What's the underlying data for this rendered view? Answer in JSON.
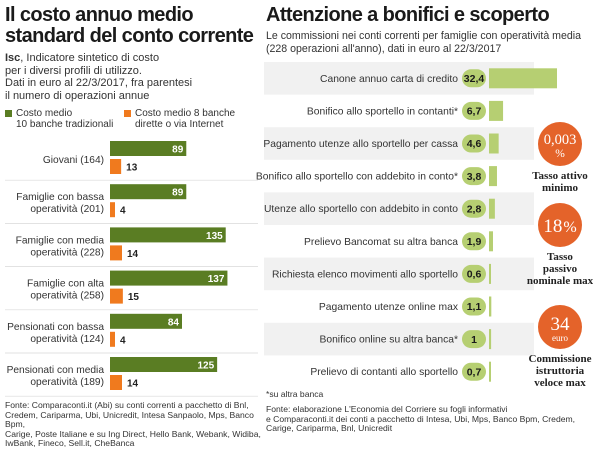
{
  "colors": {
    "green": "#5a7d23",
    "orange": "#f07a1e",
    "light_green": "#b6cf72",
    "stripe": "#f1f1f1",
    "circle": "#e4632a"
  },
  "left": {
    "title_line1": "Il costo annuo medio",
    "title_line2": "standard del conto corrente",
    "isc_abbr": "Isc",
    "desc_line1": ", Indicatore sintetico di costo",
    "desc_line2": "per i diversi profili di utilizzo.",
    "desc_line3": "Dati in euro al 22/3/2017, fra parentesi",
    "desc_line4": "il numero di operazioni annue",
    "legend_green_line1": "Costo medio",
    "legend_green_line2": "10 banche tradizionali",
    "legend_orange_line1": "Costo medio 8 banche",
    "legend_orange_line2": "dirette o via Internet",
    "source": [
      "Fonte: Comparaconti.it (Abi) su conti correnti a pacchetto di Bnl,",
      "Credem, Cariparma, Ubi, Unicredit, Intesa Sanpaolo, Mps, Banco Bpm,",
      "Carige, Poste Italiane e su Ing Direct, Hello Bank, Webank, Widiba,",
      "IwBank, Fineco, Sell.it, CheBanca"
    ]
  },
  "right": {
    "title": "Attenzione a bonifici e scoperto",
    "desc_line1": "Le commissioni nei conti correnti per famiglie con operatività media",
    "desc_line2": "(228 operazioni all'anno), dati in euro al 22/3/2017",
    "footnote": "*su altra banca",
    "source": [
      "Fonte: elaborazione L'Economia del Corriere su fogli informativi",
      "e Comparaconti.it dei conti a pacchetto di Intesa, Ubi, Mps, Banco Bpm, Credem,",
      "Carige, Cariparma, Bnl, Unicredit"
    ],
    "stats": [
      {
        "value": "0,003",
        "unit": "%",
        "caption_line1": "Tasso attivo",
        "caption_line2": "minimo",
        "caption_line3": ""
      },
      {
        "value": "18",
        "unit": "%",
        "caption_line1": "Tasso",
        "caption_line2": "passivo",
        "caption_line3": "nominale max"
      },
      {
        "value": "34",
        "unit": "euro",
        "caption_line1": "Commissione",
        "caption_line2": "istruttoria",
        "caption_line3": "veloce max"
      }
    ]
  },
  "chart_data": [
    {
      "type": "bar",
      "orientation": "horizontal",
      "title": "Il costo annuo medio standard del conto corrente",
      "categories": [
        [
          "Giovani (164)"
        ],
        [
          "Famiglie con bassa",
          "operatività (201)"
        ],
        [
          "Famiglie con media",
          "operatività (228)"
        ],
        [
          "Famiglie con alta",
          "operatività (258)"
        ],
        [
          "Pensionati con bassa",
          "operatività (124)"
        ],
        [
          "Pensionati con media",
          "operatività (189)"
        ]
      ],
      "series": [
        {
          "name": "Costo medio 10 banche tradizionali",
          "values": [
            89,
            89,
            135,
            137,
            84,
            125
          ]
        },
        {
          "name": "Costo medio 8 banche dirette o via Internet",
          "values": [
            13,
            4,
            14,
            15,
            4,
            14
          ]
        }
      ],
      "xlim": [
        0,
        140
      ]
    },
    {
      "type": "bar",
      "orientation": "horizontal",
      "title": "Attenzione a bonifici e scoperto",
      "categories": [
        "Canone annuo carta di credito",
        "Bonifico allo sportello in contanti*",
        "Pagamento utenze allo sportello per cassa",
        "Bonifico allo sportello con addebito in conto*",
        "Utenze allo sportello con addebito in conto",
        "Prelievo Bancomat su altra banca",
        "Richiesta elenco movimenti allo sportello",
        "Pagamento utenze online max",
        "Bonifico online su altra banca*",
        "Prelievo di contanti allo sportello"
      ],
      "labels": [
        "32,4",
        "6,7",
        "4,6",
        "3,8",
        "2,8",
        "1,9",
        "0,6",
        "1,1",
        "1",
        "0,7"
      ],
      "values": [
        32.4,
        6.7,
        4.6,
        3.8,
        2.8,
        1.9,
        0.6,
        1.1,
        1,
        0.7
      ]
    }
  ]
}
